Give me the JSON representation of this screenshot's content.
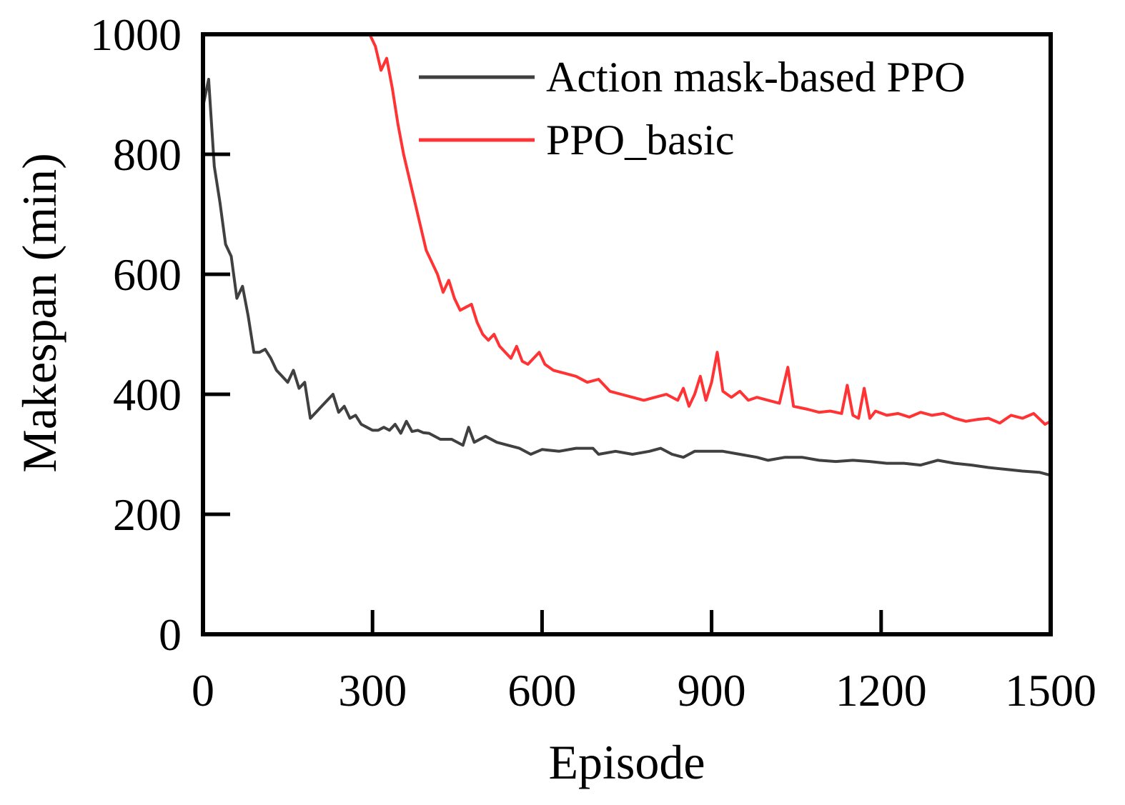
{
  "chart_data": {
    "type": "line",
    "title": "",
    "xlabel": "Episode",
    "ylabel": "Makespan (min)",
    "xlim": [
      0,
      1500
    ],
    "ylim": [
      0,
      1000
    ],
    "xticks": [
      0,
      300,
      600,
      900,
      1200,
      1500
    ],
    "yticks": [
      0,
      200,
      400,
      600,
      800,
      1000
    ],
    "xtick_labels": [
      "0",
      "300",
      "600",
      "900",
      "1200",
      "1500"
    ],
    "ytick_labels": [
      "0",
      "200",
      "400",
      "600",
      "800",
      "1000"
    ],
    "grid": false,
    "legend_position": "top-right",
    "series": [
      {
        "name": "Action mask-based PPO",
        "color": "#404040",
        "x": [
          0,
          10,
          20,
          30,
          40,
          50,
          60,
          70,
          80,
          90,
          100,
          110,
          120,
          130,
          140,
          150,
          160,
          170,
          180,
          190,
          200,
          210,
          220,
          230,
          240,
          250,
          260,
          270,
          280,
          290,
          300,
          310,
          320,
          330,
          340,
          350,
          360,
          370,
          380,
          390,
          400,
          420,
          440,
          460,
          470,
          480,
          500,
          520,
          540,
          560,
          580,
          600,
          630,
          660,
          690,
          700,
          730,
          760,
          790,
          810,
          830,
          850,
          870,
          900,
          920,
          950,
          980,
          1000,
          1030,
          1060,
          1090,
          1120,
          1150,
          1180,
          1210,
          1240,
          1270,
          1300,
          1330,
          1360,
          1390,
          1420,
          1450,
          1480,
          1500
        ],
        "values": [
          880,
          925,
          780,
          720,
          650,
          630,
          560,
          580,
          530,
          470,
          470,
          475,
          460,
          440,
          430,
          420,
          440,
          410,
          420,
          360,
          370,
          380,
          390,
          400,
          370,
          380,
          360,
          365,
          350,
          345,
          340,
          340,
          345,
          340,
          350,
          335,
          355,
          338,
          340,
          336,
          335,
          325,
          325,
          315,
          345,
          320,
          330,
          320,
          315,
          310,
          300,
          308,
          305,
          310,
          310,
          300,
          305,
          300,
          305,
          310,
          300,
          295,
          305,
          305,
          305,
          300,
          295,
          290,
          295,
          295,
          290,
          288,
          290,
          288,
          285,
          285,
          282,
          290,
          285,
          282,
          278,
          275,
          272,
          270,
          265
        ]
      },
      {
        "name": "PPO_basic",
        "color": "#ff3333",
        "x": [
          0,
          50,
          100,
          150,
          200,
          250,
          295,
          305,
          315,
          325,
          335,
          345,
          355,
          365,
          375,
          385,
          395,
          405,
          415,
          425,
          435,
          445,
          455,
          465,
          475,
          485,
          495,
          505,
          515,
          525,
          535,
          545,
          555,
          565,
          575,
          585,
          595,
          605,
          620,
          640,
          660,
          680,
          700,
          720,
          740,
          760,
          780,
          800,
          820,
          840,
          850,
          860,
          870,
          880,
          890,
          900,
          910,
          920,
          935,
          950,
          965,
          980,
          1000,
          1020,
          1035,
          1045,
          1055,
          1070,
          1090,
          1110,
          1130,
          1140,
          1150,
          1160,
          1170,
          1180,
          1190,
          1210,
          1230,
          1250,
          1270,
          1290,
          1310,
          1330,
          1350,
          1370,
          1390,
          1410,
          1430,
          1450,
          1470,
          1490,
          1500
        ],
        "values": [
          1000,
          1000,
          1000,
          1000,
          1000,
          1000,
          1000,
          980,
          940,
          960,
          910,
          850,
          800,
          760,
          720,
          680,
          640,
          620,
          600,
          570,
          590,
          560,
          540,
          545,
          550,
          520,
          500,
          490,
          500,
          480,
          470,
          460,
          480,
          455,
          450,
          460,
          470,
          450,
          440,
          435,
          430,
          420,
          425,
          405,
          400,
          395,
          390,
          395,
          400,
          390,
          410,
          380,
          400,
          430,
          390,
          420,
          470,
          405,
          395,
          405,
          390,
          395,
          390,
          385,
          445,
          380,
          378,
          375,
          370,
          372,
          368,
          415,
          365,
          360,
          410,
          360,
          372,
          365,
          368,
          362,
          370,
          365,
          368,
          360,
          355,
          358,
          360,
          352,
          365,
          360,
          368,
          350,
          355
        ]
      }
    ]
  }
}
